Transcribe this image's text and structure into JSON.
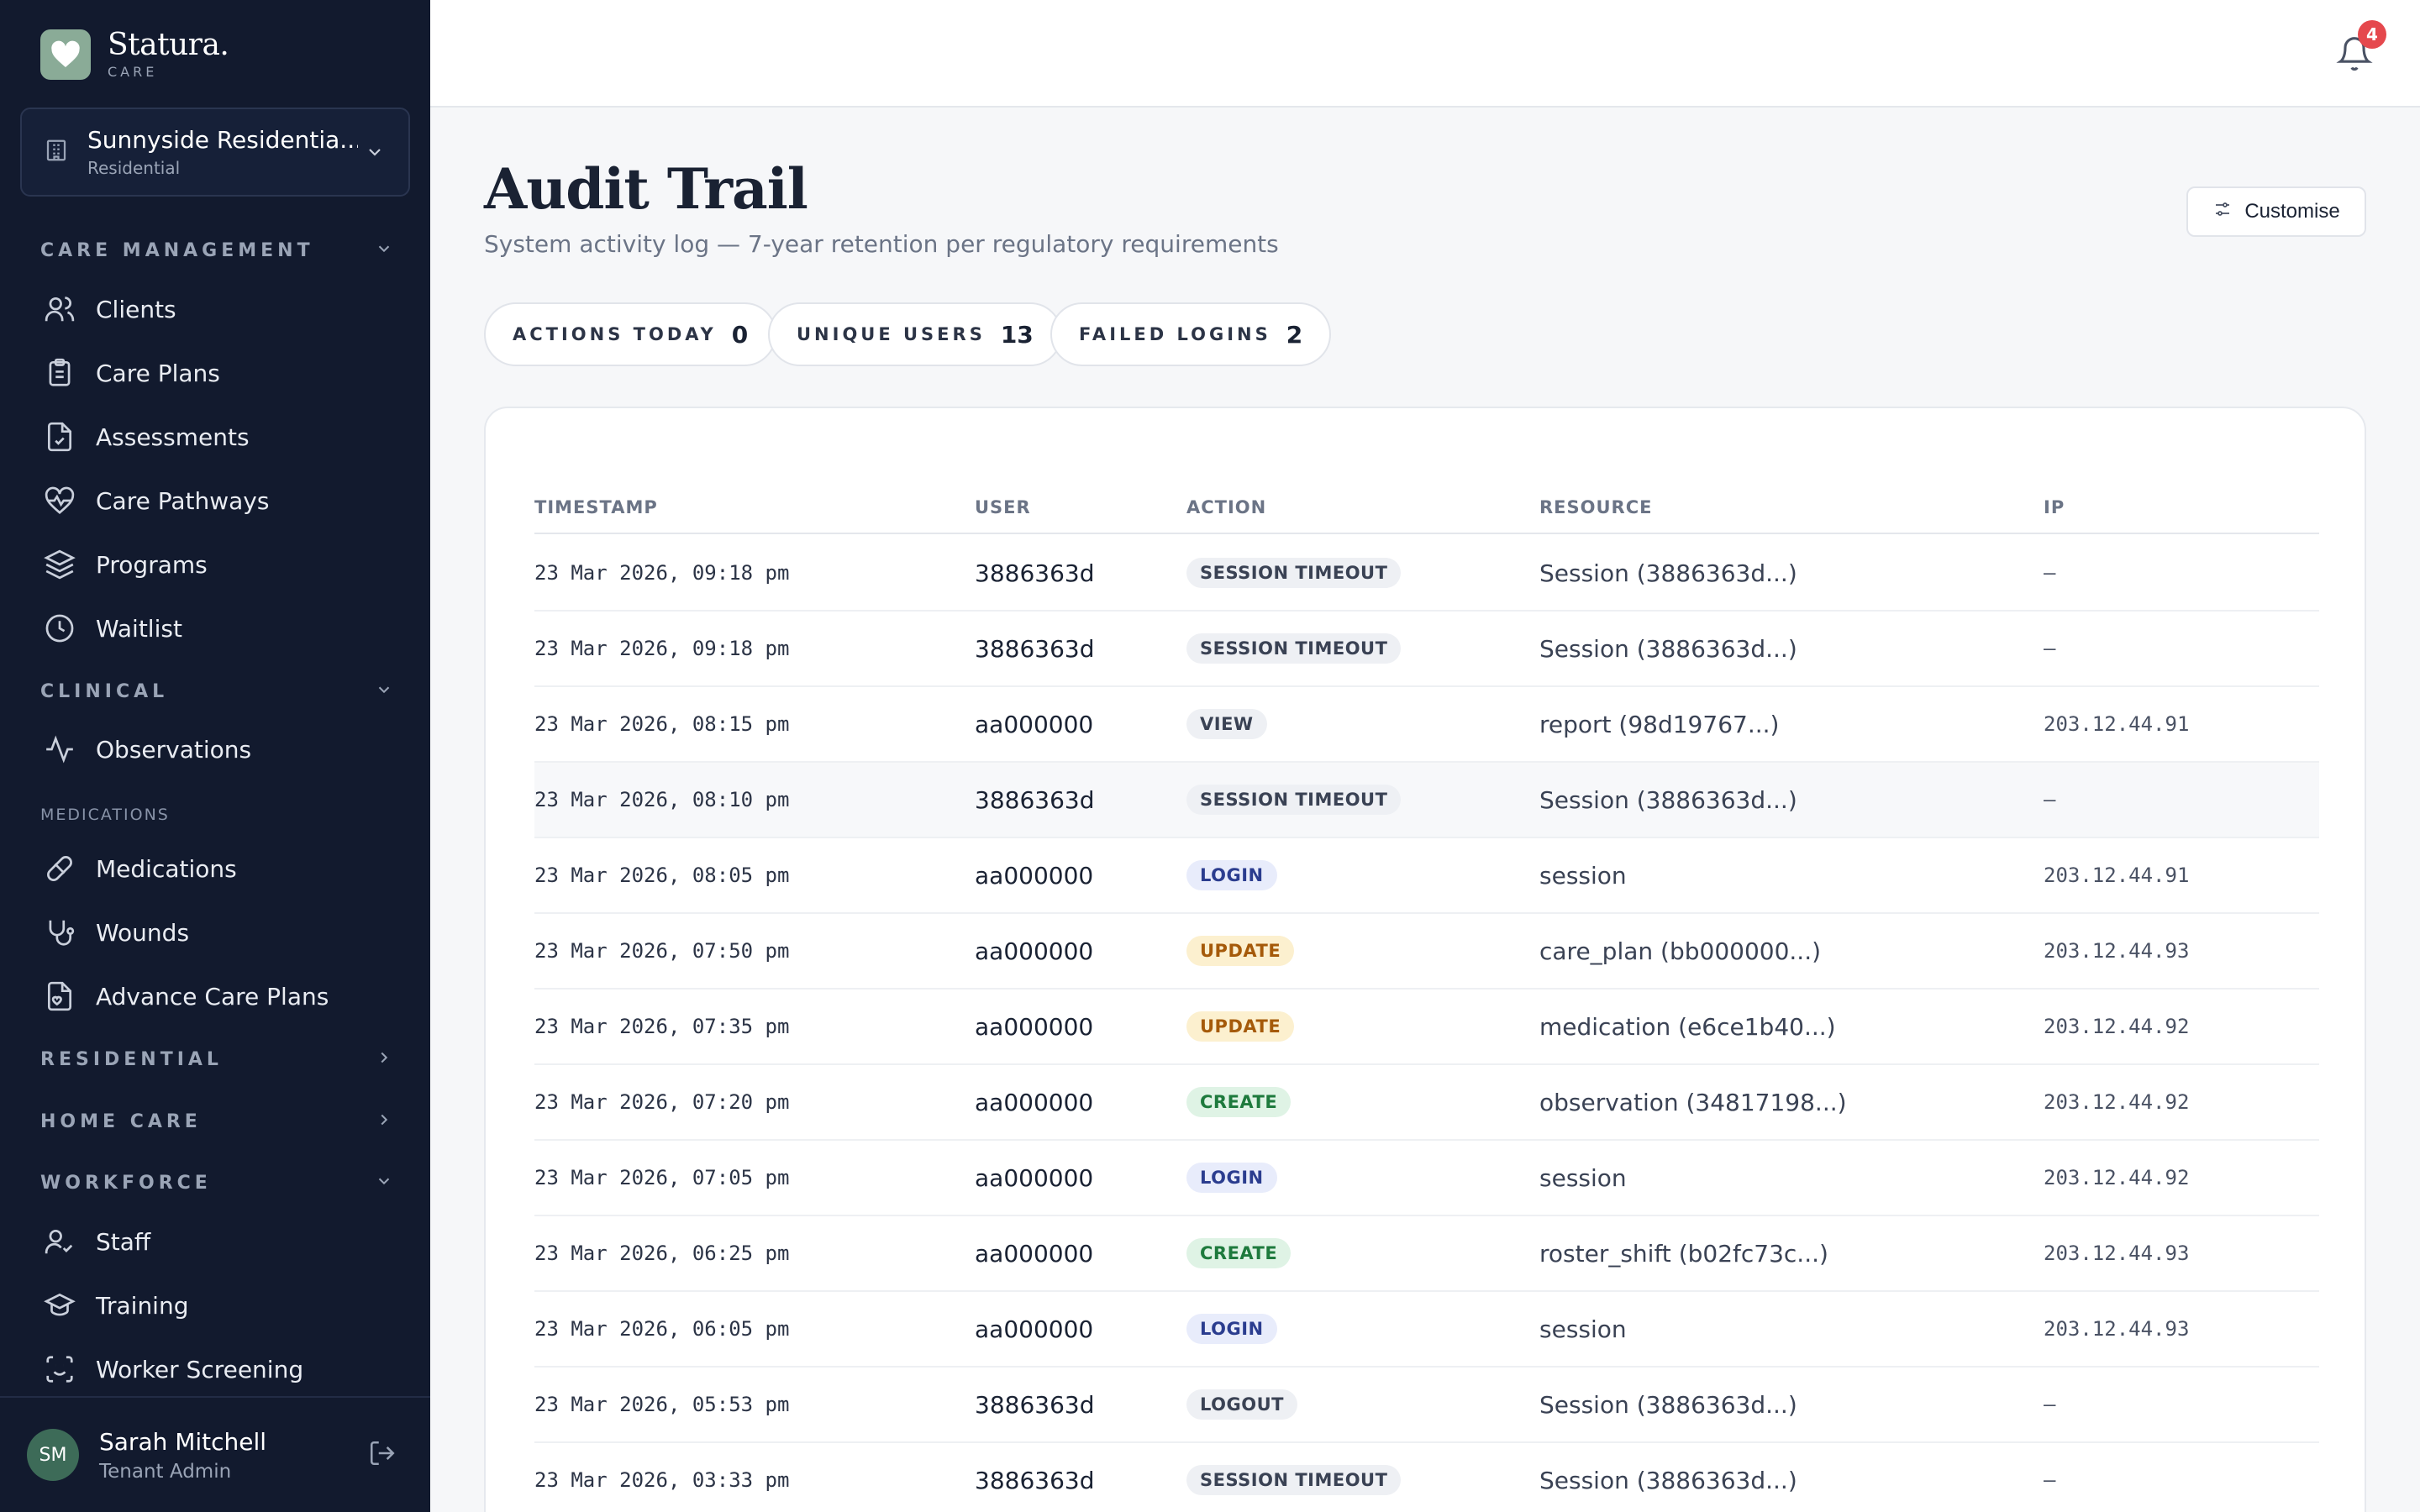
{
  "brand": {
    "name": "Statura.",
    "sub": "CARE"
  },
  "facility": {
    "name": "Sunnyside Residentia...",
    "type": "Residential"
  },
  "nav": {
    "care_management": "CARE MANAGEMENT",
    "clients": "Clients",
    "care_plans": "Care Plans",
    "assessments": "Assessments",
    "care_pathways": "Care Pathways",
    "programs": "Programs",
    "waitlist": "Waitlist",
    "clinical": "CLINICAL",
    "observations": "Observations",
    "medications_section": "MEDICATIONS",
    "medications": "Medications",
    "wounds": "Wounds",
    "advance_care_plans": "Advance Care Plans",
    "residential": "RESIDENTIAL",
    "home_care": "HOME CARE",
    "workforce": "WORKFORCE",
    "staff": "Staff",
    "training": "Training",
    "worker_screening": "Worker Screening"
  },
  "user": {
    "initials": "SM",
    "name": "Sarah Mitchell",
    "role": "Tenant Admin"
  },
  "notifications": {
    "count": "4"
  },
  "page": {
    "title": "Audit Trail",
    "subtitle": "System activity log — 7-year retention per regulatory requirements",
    "customise_label": "Customise"
  },
  "stats": [
    {
      "label": "ACTIONS TODAY",
      "value": "0"
    },
    {
      "label": "UNIQUE USERS",
      "value": "13"
    },
    {
      "label": "FAILED LOGINS",
      "value": "2"
    }
  ],
  "table": {
    "headers": [
      "TIMESTAMP",
      "USER",
      "ACTION",
      "RESOURCE",
      "IP"
    ],
    "rows": [
      {
        "timestamp": "23 Mar 2026, 09:18 pm",
        "user": "3886363d",
        "action": "SESSION TIMEOUT",
        "resource": "Session (3886363d...)",
        "ip": "—"
      },
      {
        "timestamp": "23 Mar 2026, 09:18 pm",
        "user": "3886363d",
        "action": "SESSION TIMEOUT",
        "resource": "Session (3886363d...)",
        "ip": "—"
      },
      {
        "timestamp": "23 Mar 2026, 08:15 pm",
        "user": "aa000000",
        "action": "VIEW",
        "resource": "report (98d19767...)",
        "ip": "203.12.44.91"
      },
      {
        "timestamp": "23 Mar 2026, 08:10 pm",
        "user": "3886363d",
        "action": "SESSION TIMEOUT",
        "resource": "Session (3886363d...)",
        "ip": "—"
      },
      {
        "timestamp": "23 Mar 2026, 08:05 pm",
        "user": "aa000000",
        "action": "LOGIN",
        "resource": "session",
        "ip": "203.12.44.91"
      },
      {
        "timestamp": "23 Mar 2026, 07:50 pm",
        "user": "aa000000",
        "action": "UPDATE",
        "resource": "care_plan (bb000000...)",
        "ip": "203.12.44.93"
      },
      {
        "timestamp": "23 Mar 2026, 07:35 pm",
        "user": "aa000000",
        "action": "UPDATE",
        "resource": "medication (e6ce1b40...)",
        "ip": "203.12.44.92"
      },
      {
        "timestamp": "23 Mar 2026, 07:20 pm",
        "user": "aa000000",
        "action": "CREATE",
        "resource": "observation (34817198...)",
        "ip": "203.12.44.92"
      },
      {
        "timestamp": "23 Mar 2026, 07:05 pm",
        "user": "aa000000",
        "action": "LOGIN",
        "resource": "session",
        "ip": "203.12.44.92"
      },
      {
        "timestamp": "23 Mar 2026, 06:25 pm",
        "user": "aa000000",
        "action": "CREATE",
        "resource": "roster_shift (b02fc73c...)",
        "ip": "203.12.44.93"
      },
      {
        "timestamp": "23 Mar 2026, 06:05 pm",
        "user": "aa000000",
        "action": "LOGIN",
        "resource": "session",
        "ip": "203.12.44.93"
      },
      {
        "timestamp": "23 Mar 2026, 05:53 pm",
        "user": "3886363d",
        "action": "LOGOUT",
        "resource": "Session (3886363d...)",
        "ip": "—"
      },
      {
        "timestamp": "23 Mar 2026, 03:33 pm",
        "user": "3886363d",
        "action": "SESSION TIMEOUT",
        "resource": "Session (3886363d...)",
        "ip": "—"
      }
    ]
  },
  "colors": {
    "sidebar_bg": "#121a2e",
    "badge_session_timeout": "#eef0f4",
    "badge_login": "#e8ecfb",
    "badge_update": "#fcf0cf",
    "badge_create": "#dff3e5"
  }
}
